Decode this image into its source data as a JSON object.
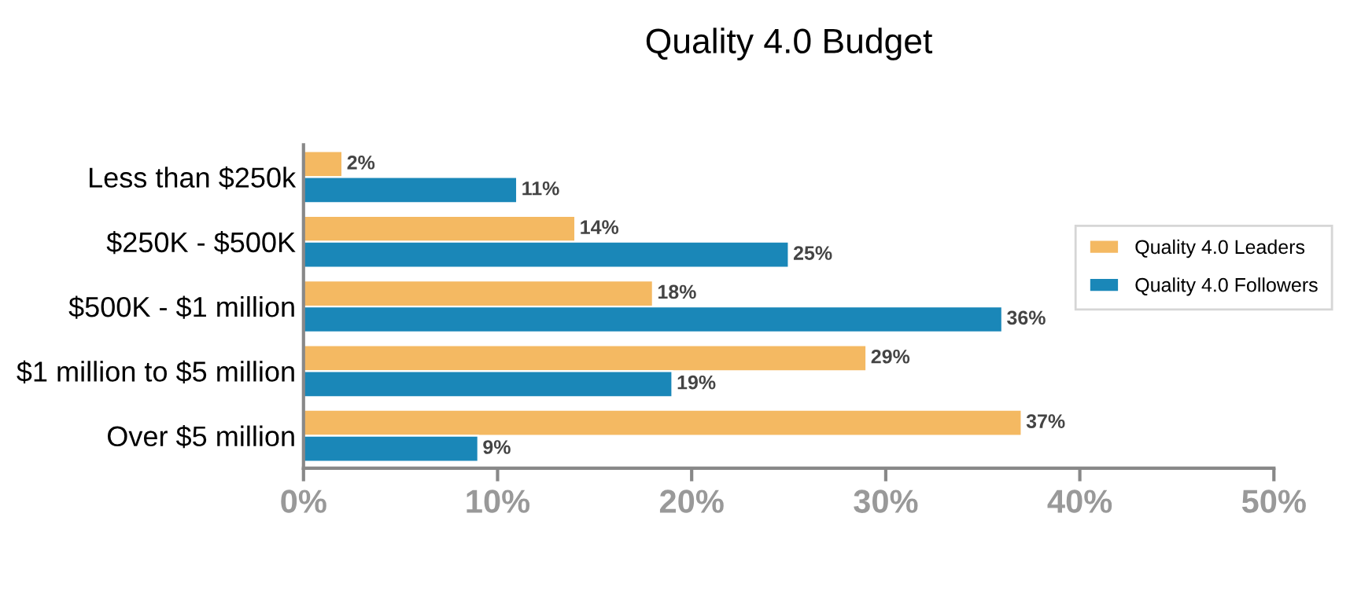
{
  "chart_data": {
    "type": "bar",
    "orientation": "horizontal",
    "title": "Quality 4.0 Budget",
    "categories": [
      "Less than $250k",
      "$250K - $500K",
      "$500K - $1 million",
      "$1 million to $5 million",
      "Over $5 million"
    ],
    "series": [
      {
        "name": "Quality 4.0 Leaders",
        "color": "#f4b962",
        "values": [
          2,
          14,
          18,
          29,
          37
        ],
        "value_labels": [
          "2%",
          "14%",
          "18%",
          "29%",
          "37%"
        ]
      },
      {
        "name": "Quality 4.0 Followers",
        "color": "#1a87b8",
        "values": [
          11,
          25,
          36,
          19,
          9
        ],
        "value_labels": [
          "11%",
          "25%",
          "36%",
          "19%",
          "9%"
        ]
      }
    ],
    "xlim": [
      0,
      50
    ],
    "xticks": [
      {
        "value": 0,
        "label": "0%"
      },
      {
        "value": 10,
        "label": "10%"
      },
      {
        "value": 20,
        "label": "20%"
      },
      {
        "value": 30,
        "label": "30%"
      },
      {
        "value": 40,
        "label": "40%"
      },
      {
        "value": 50,
        "label": "50%"
      }
    ],
    "grid": false,
    "legend": "right"
  }
}
